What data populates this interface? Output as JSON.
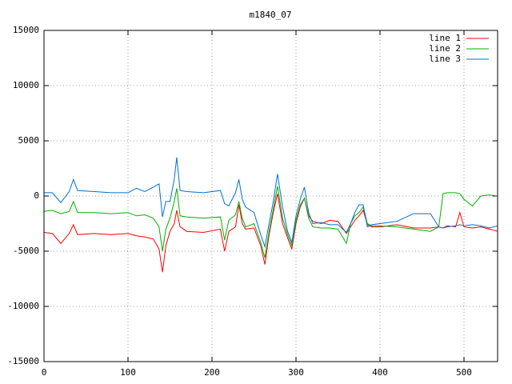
{
  "chart_data": {
    "type": "line",
    "title": "m1840_07",
    "x": [
      0,
      10,
      20,
      30,
      35,
      40,
      60,
      80,
      100,
      110,
      120,
      130,
      137,
      141,
      145,
      150,
      155,
      158,
      162,
      170,
      190,
      210,
      215,
      220,
      228,
      232,
      236,
      240,
      250,
      258,
      263,
      268,
      273,
      278,
      284,
      290,
      295,
      300,
      305,
      310,
      315,
      320,
      330,
      340,
      350,
      360,
      365,
      370,
      375,
      380,
      385,
      390,
      400,
      420,
      440,
      460,
      470,
      475,
      480,
      490,
      495,
      500,
      510,
      520,
      530,
      540
    ],
    "series": [
      {
        "name": "line 1",
        "color": "#ff0000",
        "values": [
          -3300,
          -3400,
          -4300,
          -3400,
          -2600,
          -3500,
          -3400,
          -3500,
          -3400,
          -3600,
          -3700,
          -3900,
          -4800,
          -6900,
          -4500,
          -3200,
          -2500,
          -1300,
          -2800,
          -3200,
          -3300,
          -3000,
          -5000,
          -3200,
          -2800,
          -800,
          -2500,
          -3000,
          -2900,
          -4500,
          -6200,
          -3500,
          -1500,
          200,
          -2500,
          -3800,
          -4800,
          -2500,
          -1000,
          -200,
          -1800,
          -2300,
          -2500,
          -2200,
          -2300,
          -3400,
          -2800,
          -2200,
          -1800,
          -1300,
          -2600,
          -2800,
          -2800,
          -2600,
          -2900,
          -2900,
          -2800,
          -2900,
          -2700,
          -2800,
          -1500,
          -2800,
          -2900,
          -2800,
          -3000,
          -3200
        ]
      },
      {
        "name": "line 2",
        "color": "#00b000",
        "values": [
          -1400,
          -1300,
          -1600,
          -1400,
          -500,
          -1500,
          -1500,
          -1600,
          -1500,
          -1800,
          -1700,
          -2000,
          -2800,
          -5000,
          -3000,
          -2000,
          -500,
          700,
          -1800,
          -1900,
          -2000,
          -1900,
          -4000,
          -2200,
          -1700,
          -500,
          -2000,
          -2800,
          -2500,
          -4200,
          -5600,
          -3200,
          -1200,
          900,
          -2000,
          -3500,
          -4500,
          -2200,
          -800,
          -200,
          -2000,
          -2800,
          -2900,
          -2900,
          -3000,
          -4300,
          -2500,
          -1800,
          -1500,
          -1000,
          -2500,
          -2700,
          -2700,
          -2800,
          -3000,
          -3200,
          -2800,
          200,
          300,
          300,
          200,
          -300,
          -900,
          0,
          100,
          0
        ]
      },
      {
        "name": "line 3",
        "color": "#0070d0",
        "values": [
          300,
          300,
          -600,
          400,
          1500,
          500,
          400,
          300,
          300,
          700,
          400,
          800,
          1100,
          -1900,
          -500,
          -500,
          1500,
          3500,
          500,
          400,
          300,
          500,
          -700,
          -900,
          300,
          1500,
          -300,
          -1000,
          -1500,
          -3500,
          -4600,
          -2500,
          -500,
          2000,
          -1000,
          -3200,
          -4200,
          -1800,
          -300,
          800,
          -1500,
          -2500,
          -2400,
          -2600,
          -2600,
          -3300,
          -2500,
          -1500,
          -800,
          -800,
          -2800,
          -2600,
          -2500,
          -2300,
          -1600,
          -1600,
          -2800,
          -2900,
          -2800,
          -2700,
          -2600,
          -2700,
          -2600,
          -2700,
          -2900,
          -2700
        ]
      }
    ],
    "xlim": [
      0,
      540
    ],
    "ylim": [
      -15000,
      15000
    ],
    "xticks": [
      0,
      100,
      200,
      300,
      400,
      500
    ],
    "yticks": [
      -15000,
      -10000,
      -5000,
      0,
      5000,
      10000,
      15000
    ],
    "grid": true,
    "legend": "top-right"
  }
}
